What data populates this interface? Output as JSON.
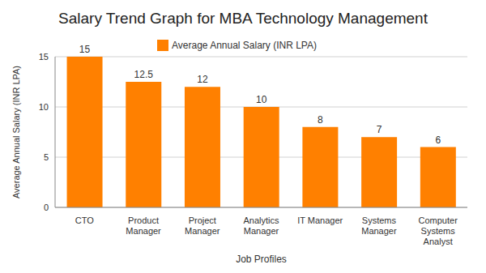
{
  "chart_data": {
    "type": "bar",
    "title": "Salary Trend Graph for MBA Technology Management",
    "x_label": "Job Profiles",
    "y_label": "Average Annual Salary (INR LPA)",
    "categories": [
      "CTO",
      "Product Manager",
      "Project Manager",
      "Analytics Manager",
      "IT Manager",
      "Systems Manager",
      "Computer Systems Analyst"
    ],
    "series": [
      {
        "name": "Average Annual Salary (INR LPA)",
        "color": "#ff8000",
        "values": [
          15,
          12.5,
          12,
          10,
          8,
          7,
          6
        ]
      }
    ],
    "ylim": [
      0,
      15
    ],
    "yticks": [
      0,
      5,
      10,
      15
    ],
    "grid": true,
    "legend": "top",
    "data_labels": true
  }
}
